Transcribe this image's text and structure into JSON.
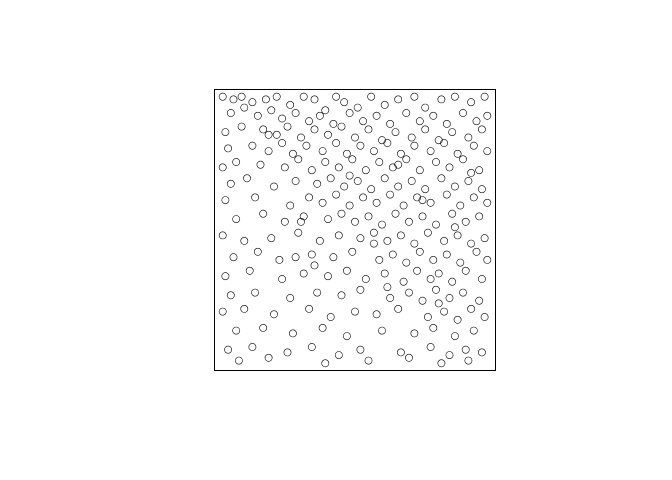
{
  "chart_data": {
    "type": "scatter",
    "title": "",
    "xlabel": "",
    "ylabel": "",
    "xlim": [
      0,
      1
    ],
    "ylim": [
      0,
      1
    ],
    "axes_shown": false,
    "box_shown": true,
    "grid": false,
    "marker": "open-circle",
    "point_color": "#000000",
    "series": [
      {
        "points": [
          [
            0.01,
            0.99
          ],
          [
            0.05,
            0.98
          ],
          [
            0.08,
            0.99
          ],
          [
            0.12,
            0.97
          ],
          [
            0.17,
            0.98
          ],
          [
            0.21,
            0.99
          ],
          [
            0.26,
            0.96
          ],
          [
            0.31,
            0.99
          ],
          [
            0.35,
            0.98
          ],
          [
            0.39,
            0.94
          ],
          [
            0.43,
            0.99
          ],
          [
            0.46,
            0.97
          ],
          [
            0.51,
            0.95
          ],
          [
            0.56,
            0.99
          ],
          [
            0.61,
            0.96
          ],
          [
            0.66,
            0.98
          ],
          [
            0.72,
            0.99
          ],
          [
            0.76,
            0.95
          ],
          [
            0.82,
            0.98
          ],
          [
            0.87,
            0.99
          ],
          [
            0.93,
            0.97
          ],
          [
            0.98,
            0.99
          ],
          [
            0.04,
            0.93
          ],
          [
            0.09,
            0.95
          ],
          [
            0.14,
            0.92
          ],
          [
            0.19,
            0.94
          ],
          [
            0.23,
            0.91
          ],
          [
            0.28,
            0.93
          ],
          [
            0.33,
            0.9
          ],
          [
            0.37,
            0.92
          ],
          [
            0.42,
            0.89
          ],
          [
            0.48,
            0.93
          ],
          [
            0.53,
            0.9
          ],
          [
            0.58,
            0.92
          ],
          [
            0.63,
            0.89
          ],
          [
            0.69,
            0.93
          ],
          [
            0.74,
            0.9
          ],
          [
            0.79,
            0.92
          ],
          [
            0.84,
            0.89
          ],
          [
            0.9,
            0.93
          ],
          [
            0.95,
            0.9
          ],
          [
            0.99,
            0.92
          ],
          [
            0.02,
            0.86
          ],
          [
            0.08,
            0.88
          ],
          [
            0.16,
            0.87
          ],
          [
            0.21,
            0.85
          ],
          [
            0.25,
            0.88
          ],
          [
            0.3,
            0.84
          ],
          [
            0.35,
            0.87
          ],
          [
            0.4,
            0.85
          ],
          [
            0.45,
            0.88
          ],
          [
            0.5,
            0.84
          ],
          [
            0.55,
            0.87
          ],
          [
            0.6,
            0.83
          ],
          [
            0.65,
            0.86
          ],
          [
            0.71,
            0.84
          ],
          [
            0.76,
            0.87
          ],
          [
            0.81,
            0.83
          ],
          [
            0.86,
            0.86
          ],
          [
            0.92,
            0.84
          ],
          [
            0.97,
            0.87
          ],
          [
            0.03,
            0.8
          ],
          [
            0.12,
            0.81
          ],
          [
            0.18,
            0.79
          ],
          [
            0.23,
            0.82
          ],
          [
            0.27,
            0.78
          ],
          [
            0.32,
            0.81
          ],
          [
            0.38,
            0.79
          ],
          [
            0.43,
            0.82
          ],
          [
            0.47,
            0.78
          ],
          [
            0.52,
            0.81
          ],
          [
            0.57,
            0.79
          ],
          [
            0.62,
            0.82
          ],
          [
            0.67,
            0.78
          ],
          [
            0.72,
            0.81
          ],
          [
            0.78,
            0.79
          ],
          [
            0.83,
            0.82
          ],
          [
            0.88,
            0.78
          ],
          [
            0.94,
            0.81
          ],
          [
            0.99,
            0.79
          ],
          [
            0.01,
            0.73
          ],
          [
            0.06,
            0.75
          ],
          [
            0.15,
            0.74
          ],
          [
            0.24,
            0.73
          ],
          [
            0.29,
            0.76
          ],
          [
            0.34,
            0.72
          ],
          [
            0.39,
            0.75
          ],
          [
            0.44,
            0.73
          ],
          [
            0.49,
            0.76
          ],
          [
            0.54,
            0.72
          ],
          [
            0.59,
            0.75
          ],
          [
            0.64,
            0.73
          ],
          [
            0.69,
            0.76
          ],
          [
            0.74,
            0.72
          ],
          [
            0.8,
            0.75
          ],
          [
            0.85,
            0.73
          ],
          [
            0.9,
            0.76
          ],
          [
            0.96,
            0.72
          ],
          [
            0.04,
            0.67
          ],
          [
            0.1,
            0.69
          ],
          [
            0.2,
            0.66
          ],
          [
            0.28,
            0.68
          ],
          [
            0.36,
            0.67
          ],
          [
            0.41,
            0.69
          ],
          [
            0.46,
            0.66
          ],
          [
            0.51,
            0.68
          ],
          [
            0.56,
            0.65
          ],
          [
            0.61,
            0.69
          ],
          [
            0.66,
            0.66
          ],
          [
            0.71,
            0.68
          ],
          [
            0.76,
            0.65
          ],
          [
            0.82,
            0.69
          ],
          [
            0.87,
            0.66
          ],
          [
            0.92,
            0.68
          ],
          [
            0.97,
            0.65
          ],
          [
            0.02,
            0.61
          ],
          [
            0.13,
            0.62
          ],
          [
            0.26,
            0.59
          ],
          [
            0.33,
            0.62
          ],
          [
            0.38,
            0.6
          ],
          [
            0.43,
            0.63
          ],
          [
            0.48,
            0.59
          ],
          [
            0.53,
            0.62
          ],
          [
            0.58,
            0.6
          ],
          [
            0.63,
            0.63
          ],
          [
            0.68,
            0.59
          ],
          [
            0.73,
            0.62
          ],
          [
            0.78,
            0.6
          ],
          [
            0.84,
            0.63
          ],
          [
            0.89,
            0.59
          ],
          [
            0.94,
            0.62
          ],
          [
            0.99,
            0.6
          ],
          [
            0.06,
            0.54
          ],
          [
            0.16,
            0.56
          ],
          [
            0.24,
            0.53
          ],
          [
            0.31,
            0.55
          ],
          [
            0.4,
            0.54
          ],
          [
            0.45,
            0.56
          ],
          [
            0.5,
            0.53
          ],
          [
            0.55,
            0.55
          ],
          [
            0.6,
            0.52
          ],
          [
            0.65,
            0.56
          ],
          [
            0.7,
            0.53
          ],
          [
            0.75,
            0.55
          ],
          [
            0.8,
            0.52
          ],
          [
            0.86,
            0.56
          ],
          [
            0.91,
            0.53
          ],
          [
            0.96,
            0.55
          ],
          [
            0.01,
            0.48
          ],
          [
            0.09,
            0.46
          ],
          [
            0.19,
            0.47
          ],
          [
            0.29,
            0.49
          ],
          [
            0.37,
            0.46
          ],
          [
            0.44,
            0.48
          ],
          [
            0.52,
            0.47
          ],
          [
            0.57,
            0.49
          ],
          [
            0.62,
            0.46
          ],
          [
            0.67,
            0.48
          ],
          [
            0.72,
            0.45
          ],
          [
            0.77,
            0.49
          ],
          [
            0.83,
            0.46
          ],
          [
            0.88,
            0.48
          ],
          [
            0.93,
            0.45
          ],
          [
            0.98,
            0.47
          ],
          [
            0.05,
            0.4
          ],
          [
            0.14,
            0.42
          ],
          [
            0.22,
            0.39
          ],
          [
            0.34,
            0.41
          ],
          [
            0.42,
            0.4
          ],
          [
            0.49,
            0.42
          ],
          [
            0.59,
            0.39
          ],
          [
            0.64,
            0.41
          ],
          [
            0.69,
            0.38
          ],
          [
            0.74,
            0.42
          ],
          [
            0.79,
            0.39
          ],
          [
            0.84,
            0.41
          ],
          [
            0.89,
            0.38
          ],
          [
            0.95,
            0.42
          ],
          [
            0.99,
            0.39
          ],
          [
            0.02,
            0.33
          ],
          [
            0.11,
            0.35
          ],
          [
            0.23,
            0.32
          ],
          [
            0.31,
            0.34
          ],
          [
            0.4,
            0.33
          ],
          [
            0.47,
            0.35
          ],
          [
            0.54,
            0.32
          ],
          [
            0.61,
            0.34
          ],
          [
            0.68,
            0.31
          ],
          [
            0.73,
            0.35
          ],
          [
            0.78,
            0.32
          ],
          [
            0.81,
            0.34
          ],
          [
            0.86,
            0.31
          ],
          [
            0.91,
            0.35
          ],
          [
            0.97,
            0.32
          ],
          [
            0.04,
            0.26
          ],
          [
            0.13,
            0.27
          ],
          [
            0.26,
            0.25
          ],
          [
            0.36,
            0.27
          ],
          [
            0.45,
            0.26
          ],
          [
            0.52,
            0.28
          ],
          [
            0.63,
            0.25
          ],
          [
            0.7,
            0.27
          ],
          [
            0.75,
            0.24
          ],
          [
            0.8,
            0.28
          ],
          [
            0.85,
            0.25
          ],
          [
            0.9,
            0.27
          ],
          [
            0.96,
            0.24
          ],
          [
            0.01,
            0.2
          ],
          [
            0.09,
            0.21
          ],
          [
            0.2,
            0.19
          ],
          [
            0.33,
            0.21
          ],
          [
            0.41,
            0.18
          ],
          [
            0.5,
            0.2
          ],
          [
            0.58,
            0.19
          ],
          [
            0.66,
            0.21
          ],
          [
            0.77,
            0.18
          ],
          [
            0.83,
            0.2
          ],
          [
            0.88,
            0.17
          ],
          [
            0.93,
            0.21
          ],
          [
            0.98,
            0.18
          ],
          [
            0.06,
            0.13
          ],
          [
            0.16,
            0.14
          ],
          [
            0.27,
            0.12
          ],
          [
            0.38,
            0.14
          ],
          [
            0.47,
            0.11
          ],
          [
            0.6,
            0.13
          ],
          [
            0.72,
            0.12
          ],
          [
            0.79,
            0.14
          ],
          [
            0.87,
            0.11
          ],
          [
            0.94,
            0.13
          ],
          [
            0.03,
            0.06
          ],
          [
            0.12,
            0.07
          ],
          [
            0.25,
            0.05
          ],
          [
            0.34,
            0.07
          ],
          [
            0.44,
            0.04
          ],
          [
            0.52,
            0.06
          ],
          [
            0.67,
            0.05
          ],
          [
            0.78,
            0.07
          ],
          [
            0.85,
            0.04
          ],
          [
            0.91,
            0.06
          ],
          [
            0.97,
            0.05
          ],
          [
            0.07,
            0.02
          ],
          [
            0.18,
            0.03
          ],
          [
            0.39,
            0.01
          ],
          [
            0.55,
            0.02
          ],
          [
            0.7,
            0.03
          ],
          [
            0.82,
            0.01
          ],
          [
            0.92,
            0.02
          ],
          [
            0.3,
            0.53
          ],
          [
            0.35,
            0.37
          ],
          [
            0.18,
            0.85
          ],
          [
            0.48,
            0.7
          ],
          [
            0.57,
            0.45
          ],
          [
            0.66,
            0.74
          ],
          [
            0.75,
            0.61
          ],
          [
            0.87,
            0.51
          ],
          [
            0.93,
            0.71
          ],
          [
            0.28,
            0.4
          ],
          [
            0.62,
            0.29
          ],
          [
            0.81,
            0.23
          ]
        ]
      }
    ]
  }
}
